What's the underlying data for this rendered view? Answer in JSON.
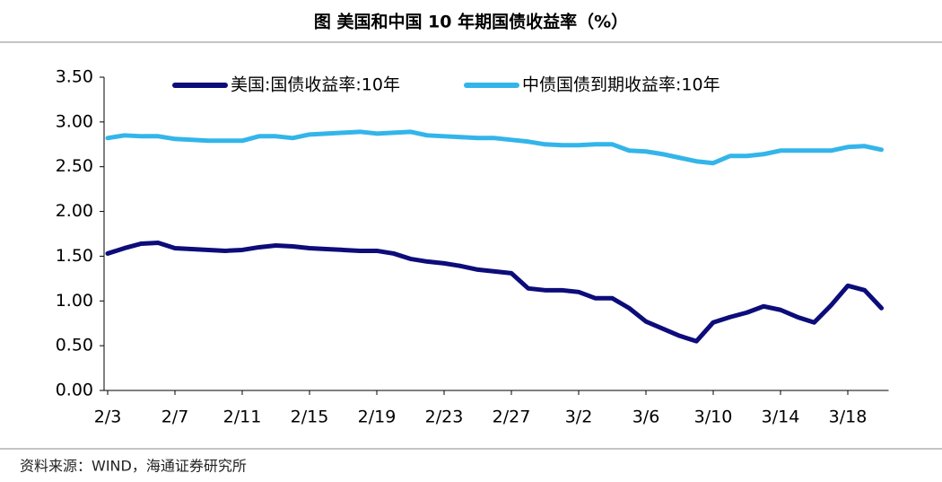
{
  "chart_data": {
    "type": "line",
    "title": "图  美国和中国 10 年期国债收益率（%）",
    "source": "资料来源：WIND，海通证券研究所",
    "categories": [
      "2/3",
      null,
      null,
      null,
      "2/7",
      null,
      null,
      null,
      "2/11",
      null,
      null,
      null,
      "2/15",
      null,
      null,
      null,
      "2/19",
      null,
      null,
      null,
      "2/23",
      null,
      null,
      null,
      "2/27",
      null,
      null,
      null,
      "3/2",
      null,
      null,
      null,
      "3/6",
      null,
      null,
      null,
      "3/10",
      null,
      null,
      null,
      "3/14",
      null,
      null,
      null,
      "3/18",
      null,
      null
    ],
    "series": [
      {
        "name": "美国:国债收益率:10年",
        "color": "#0c0c7a",
        "values": [
          1.53,
          1.59,
          1.64,
          1.65,
          1.59,
          1.58,
          1.57,
          1.56,
          1.57,
          1.6,
          1.62,
          1.61,
          1.59,
          1.58,
          1.57,
          1.56,
          1.56,
          1.53,
          1.47,
          1.44,
          1.42,
          1.39,
          1.35,
          1.33,
          1.31,
          1.14,
          1.12,
          1.12,
          1.1,
          1.03,
          1.03,
          0.92,
          0.77,
          0.69,
          0.61,
          0.55,
          0.76,
          0.82,
          0.87,
          0.94,
          0.9,
          0.82,
          0.76,
          0.95,
          1.17,
          1.12,
          0.92
        ]
      },
      {
        "name": "中债国债到期收益率:10年",
        "color": "#33b5ea",
        "values": [
          2.82,
          2.85,
          2.84,
          2.84,
          2.81,
          2.8,
          2.79,
          2.79,
          2.79,
          2.84,
          2.84,
          2.82,
          2.86,
          2.87,
          2.88,
          2.89,
          2.87,
          2.88,
          2.89,
          2.85,
          2.84,
          2.83,
          2.82,
          2.82,
          2.8,
          2.78,
          2.75,
          2.74,
          2.74,
          2.75,
          2.75,
          2.68,
          2.67,
          2.64,
          2.6,
          2.56,
          2.54,
          2.62,
          2.62,
          2.64,
          2.68,
          2.68,
          2.68,
          2.68,
          2.72,
          2.73,
          2.69
        ]
      }
    ],
    "ylim": [
      0,
      3.5
    ],
    "yticks": [
      {
        "value": 0,
        "label": "0.00"
      },
      {
        "value": 0.5,
        "label": "0.50"
      },
      {
        "value": 1,
        "label": "1.00"
      },
      {
        "value": 1.5,
        "label": "1.50"
      },
      {
        "value": 2,
        "label": "2.00"
      },
      {
        "value": 2.5,
        "label": "2.50"
      },
      {
        "value": 3,
        "label": "3.00"
      },
      {
        "value": 3.5,
        "label": "3.50"
      }
    ],
    "grid": false,
    "legend": "top"
  }
}
